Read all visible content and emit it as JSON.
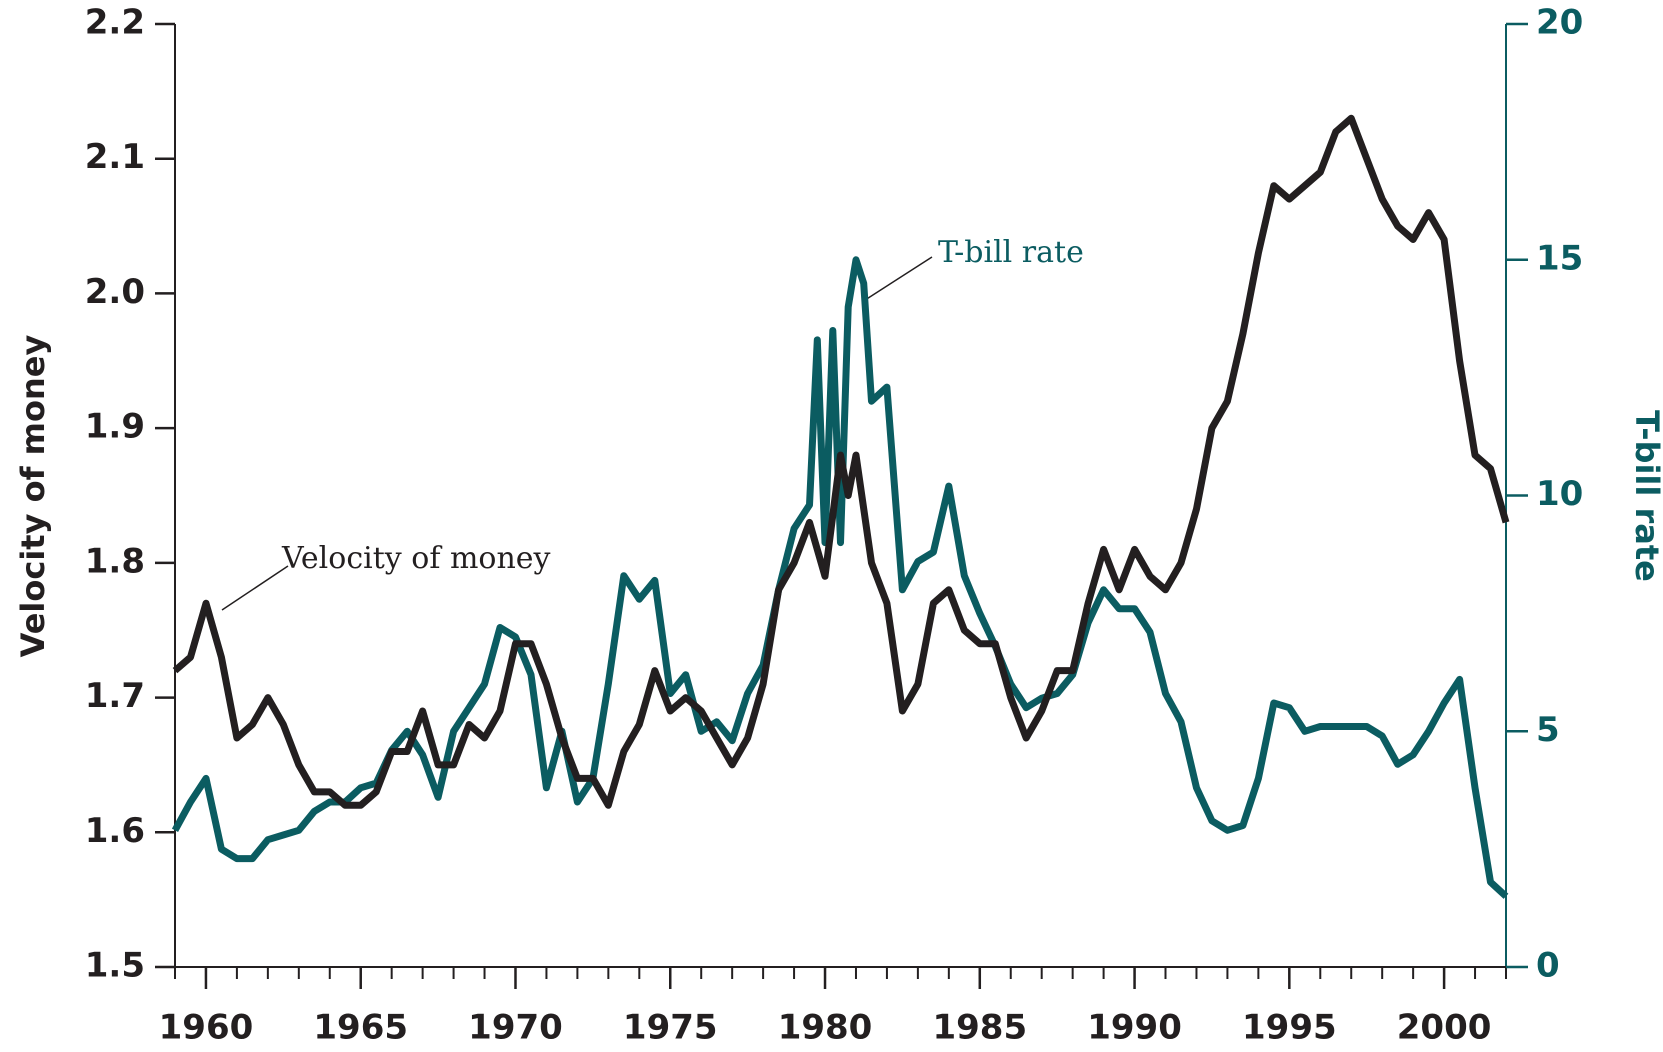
{
  "chart_data": {
    "type": "line",
    "xlim": [
      1959,
      2002
    ],
    "xticks": [
      1960,
      1965,
      1970,
      1975,
      1980,
      1985,
      1990,
      1995,
      2000
    ],
    "ylim": [
      1.5,
      2.2
    ],
    "yticks": [
      1.5,
      1.6,
      1.7,
      1.8,
      1.9,
      {
        "value": 2.0,
        "label": "2.0"
      },
      2.1,
      2.2
    ],
    "y2lim": [
      0,
      20
    ],
    "y2ticks": [
      0,
      5,
      10,
      15,
      20
    ],
    "ylabel": "Velocity of money",
    "y2label": "T-bill rate",
    "annotations": [
      "Velocity of money",
      "T-bill rate"
    ],
    "series": [
      {
        "name": "Velocity of money",
        "color": "#231f20",
        "x": [
          1959,
          1959.5,
          1960,
          1960.5,
          1961,
          1961.5,
          1962,
          1962.5,
          1963,
          1963.5,
          1964,
          1964.5,
          1965,
          1965.5,
          1966,
          1966.5,
          1967,
          1967.5,
          1968,
          1968.5,
          1969,
          1969.5,
          1970,
          1970.5,
          1971,
          1971.5,
          1972,
          1972.5,
          1973,
          1973.5,
          1974,
          1974.5,
          1975,
          1975.5,
          1976,
          1976.5,
          1977,
          1977.5,
          1978,
          1978.5,
          1979,
          1979.5,
          1980,
          1980.5,
          1980.75,
          1981,
          1981.5,
          1982,
          1982.5,
          1983,
          1983.5,
          1984,
          1984.5,
          1985,
          1985.5,
          1986,
          1986.5,
          1987,
          1987.5,
          1988,
          1988.5,
          1989,
          1989.5,
          1990,
          1990.5,
          1991,
          1991.5,
          1992,
          1992.5,
          1993,
          1993.5,
          1994,
          1994.5,
          1995,
          1995.5,
          1996,
          1996.5,
          1997,
          1997.5,
          1998,
          1998.5,
          1999,
          1999.5,
          2000,
          2000.5,
          2001,
          2001.5,
          2002
        ],
        "values": [
          1.72,
          1.73,
          1.77,
          1.73,
          1.67,
          1.68,
          1.7,
          1.68,
          1.65,
          1.63,
          1.63,
          1.62,
          1.62,
          1.63,
          1.66,
          1.66,
          1.69,
          1.65,
          1.65,
          1.68,
          1.67,
          1.69,
          1.74,
          1.74,
          1.71,
          1.67,
          1.64,
          1.64,
          1.62,
          1.66,
          1.68,
          1.72,
          1.69,
          1.7,
          1.69,
          1.67,
          1.65,
          1.67,
          1.71,
          1.78,
          1.8,
          1.83,
          1.79,
          1.88,
          1.85,
          1.88,
          1.8,
          1.77,
          1.69,
          1.71,
          1.77,
          1.78,
          1.75,
          1.74,
          1.74,
          1.7,
          1.67,
          1.69,
          1.72,
          1.72,
          1.77,
          1.81,
          1.78,
          1.81,
          1.79,
          1.78,
          1.8,
          1.84,
          1.9,
          1.92,
          1.97,
          2.03,
          2.08,
          2.07,
          2.08,
          2.09,
          2.12,
          2.13,
          2.1,
          2.07,
          2.05,
          2.04,
          2.06,
          2.04,
          1.95,
          1.88,
          1.87,
          1.83
        ]
      },
      {
        "name": "T-bill rate",
        "color": "#0b5c61",
        "axis": "y2",
        "x": [
          1959,
          1959.5,
          1960,
          1960.5,
          1961,
          1961.5,
          1962,
          1962.5,
          1963,
          1963.5,
          1964,
          1964.5,
          1965,
          1965.5,
          1966,
          1966.5,
          1967,
          1967.5,
          1968,
          1968.5,
          1969,
          1969.5,
          1970,
          1970.5,
          1971,
          1971.5,
          1972,
          1972.5,
          1973,
          1973.5,
          1974,
          1974.5,
          1975,
          1975.5,
          1976,
          1976.5,
          1977,
          1977.5,
          1978,
          1978.5,
          1979,
          1979.5,
          1979.75,
          1980,
          1980.25,
          1980.5,
          1980.75,
          1981,
          1981.25,
          1981.5,
          1982,
          1982.5,
          1983,
          1983.5,
          1984,
          1984.5,
          1985,
          1985.5,
          1986,
          1986.5,
          1987,
          1987.5,
          1988,
          1988.5,
          1989,
          1989.5,
          1990,
          1990.5,
          1991,
          1991.5,
          1992,
          1992.5,
          1993,
          1993.5,
          1994,
          1994.5,
          1995,
          1995.5,
          1996,
          1996.5,
          1997,
          1997.5,
          1998,
          1998.5,
          1999,
          1999.5,
          2000,
          2000.5,
          2001,
          2001.5,
          2002
        ],
        "values": [
          2.9,
          3.5,
          4.0,
          2.5,
          2.3,
          2.3,
          2.7,
          2.8,
          2.9,
          3.3,
          3.5,
          3.5,
          3.8,
          3.9,
          4.6,
          5.0,
          4.5,
          3.6,
          5.0,
          5.5,
          6.0,
          7.2,
          7.0,
          6.2,
          3.8,
          5.0,
          3.5,
          4.0,
          6.0,
          8.3,
          7.8,
          8.2,
          5.8,
          6.2,
          5.0,
          5.2,
          4.8,
          5.8,
          6.4,
          8.0,
          9.3,
          9.8,
          13.3,
          9.0,
          13.5,
          9.0,
          14.0,
          15.0,
          14.5,
          12.0,
          12.3,
          8.0,
          8.6,
          8.8,
          10.2,
          8.3,
          7.5,
          6.8,
          6.0,
          5.5,
          5.7,
          5.8,
          6.2,
          7.3,
          8.0,
          7.6,
          7.6,
          7.1,
          5.8,
          5.2,
          3.8,
          3.1,
          2.9,
          3.0,
          4.0,
          5.6,
          5.5,
          5.0,
          5.1,
          5.1,
          5.1,
          5.1,
          4.9,
          4.3,
          4.5,
          5.0,
          5.6,
          6.1,
          3.8,
          1.8,
          1.5
        ]
      }
    ]
  }
}
